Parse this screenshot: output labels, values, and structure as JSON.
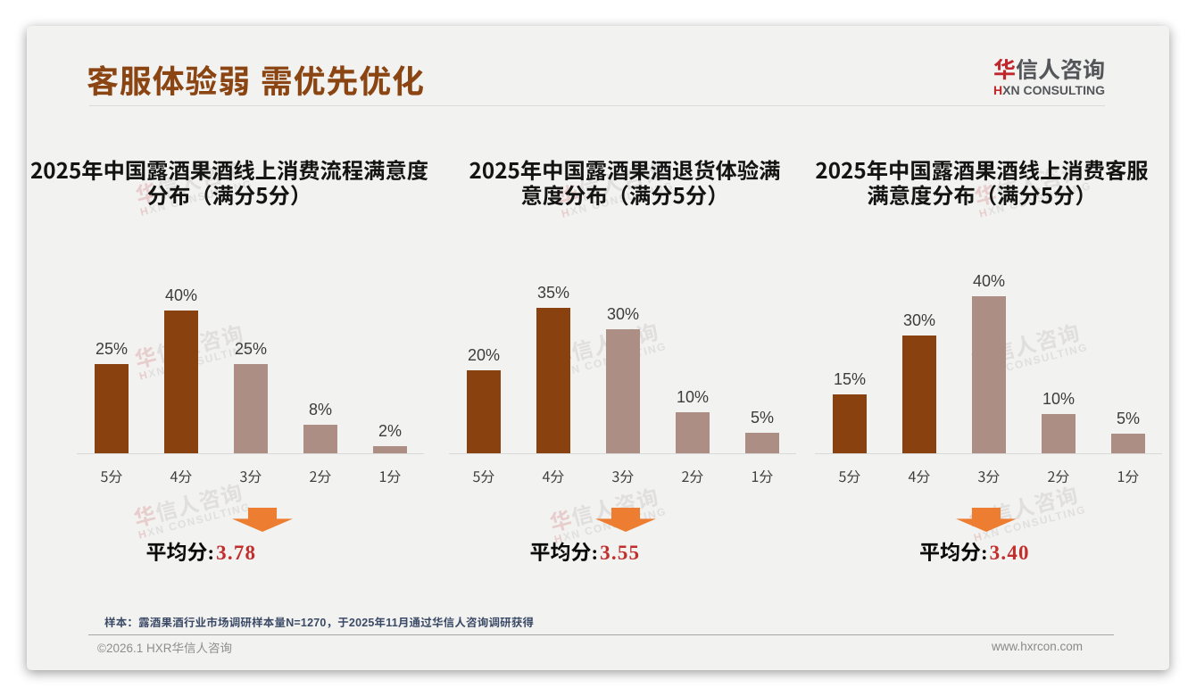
{
  "page": {
    "background": "#FFFFFF",
    "card_background": "#F2F2F1"
  },
  "header": {
    "title": "客服体验弱 需优先优化",
    "title_color": "#8B4513",
    "logo": {
      "cn_first": "华",
      "cn_rest": "信人咨询",
      "en_first": "H",
      "en_rest": "XN CONSULTING",
      "accent_red": "#C0272D",
      "grey": "#55565A"
    }
  },
  "watermark": {
    "cn_first": "华",
    "cn_rest": "信人咨询",
    "en_first": "H",
    "en_rest": "XN CONSULTING"
  },
  "chart_data": [
    {
      "type": "bar",
      "title": "2025年中国露酒果酒线上消费流程满意度\n分布（满分5分）",
      "categories": [
        "5分",
        "4分",
        "3分",
        "2分",
        "1分"
      ],
      "values": [
        25,
        40,
        25,
        8,
        2
      ],
      "unit": "%",
      "ylim": [
        0,
        45
      ],
      "grid": false,
      "legend": "none",
      "bar_colors": [
        "#8A4110",
        "#8A4110",
        "#AC8E85",
        "#AC8E85",
        "#AC8E85"
      ],
      "average_label": "平均分:",
      "average": "3.78"
    },
    {
      "type": "bar",
      "title": "2025年中国露酒果酒退货体验满\n意度分布（满分5分）",
      "categories": [
        "5分",
        "4分",
        "3分",
        "2分",
        "1分"
      ],
      "values": [
        20,
        35,
        30,
        10,
        5
      ],
      "unit": "%",
      "ylim": [
        0,
        40
      ],
      "grid": false,
      "legend": "none",
      "bar_colors": [
        "#8A4110",
        "#8A4110",
        "#AC8E85",
        "#AC8E85",
        "#AC8E85"
      ],
      "average_label": "平均分:",
      "average": "3.55"
    },
    {
      "type": "bar",
      "title": "2025年中国露酒果酒线上消费客服\n满意度分布（满分5分）",
      "categories": [
        "5分",
        "4分",
        "3分",
        "2分",
        "1分"
      ],
      "values": [
        15,
        30,
        40,
        10,
        5
      ],
      "unit": "%",
      "ylim": [
        0,
        45
      ],
      "grid": false,
      "legend": "none",
      "bar_colors": [
        "#8A4110",
        "#8A4110",
        "#AC8E85",
        "#AC8E85",
        "#AC8E85"
      ],
      "average_label": "平均分:",
      "average": "3.40"
    }
  ],
  "footer": {
    "note": "样本：露酒果酒行业市场调研样本量N=1270，于2025年11月通过华信人咨询调研获得",
    "copyright": "©2026.1 HXR华信人咨询",
    "website": "www.hxrcon.com"
  }
}
